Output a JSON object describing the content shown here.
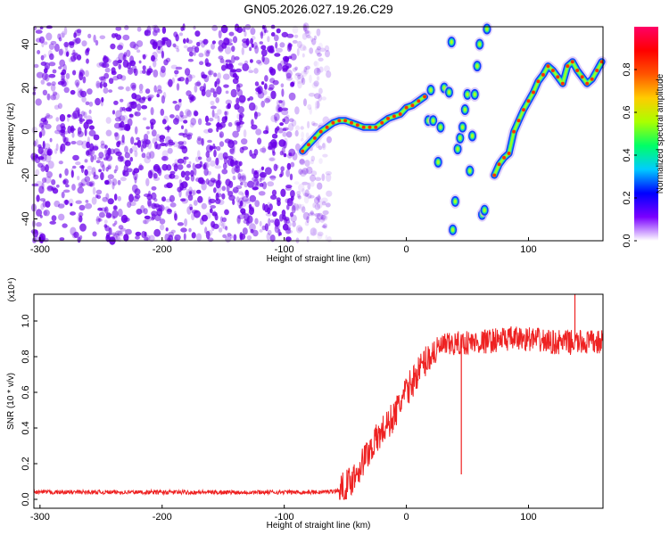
{
  "title": "GN05.2026.027.19.26.C29",
  "chart_data": [
    {
      "type": "heatmap",
      "xlabel": "Height of straight line (km)",
      "ylabel": "Frequency (Hz)",
      "xlim": [
        -305,
        161
      ],
      "ylim": [
        -50,
        48
      ],
      "xticks": [
        -300,
        -200,
        -100,
        0,
        100
      ],
      "yticks": [
        -40,
        -20,
        0,
        20,
        40
      ],
      "colorbar": {
        "label": "Normalized spectral amplitude",
        "range": [
          0,
          1
        ],
        "ticks": [
          "0.0",
          "0.2",
          "0.4",
          "0.6",
          "0.8"
        ],
        "tick_values": [
          0,
          0.2,
          0.4,
          0.6,
          0.8
        ],
        "colors": [
          "#ffffff",
          "#7a00ff",
          "#0000ff",
          "#00ccff",
          "#00ff66",
          "#aaff00",
          "#ffcc00",
          "#ff5500",
          "#ff0000",
          "#ff0066"
        ]
      },
      "noise_region": {
        "x_from": -305,
        "x_to": -63,
        "color": "#6a00e8"
      },
      "ridge": {
        "x": [
          -85,
          -80,
          -75,
          -70,
          -65,
          -60,
          -55,
          -50,
          -45,
          -40,
          -35,
          -30,
          -25,
          -20,
          -15,
          -10,
          -5,
          0,
          5,
          10,
          15
        ],
        "y": [
          -9,
          -6,
          -3,
          0,
          2,
          4,
          5,
          5,
          4,
          3,
          2,
          2,
          2,
          4,
          6,
          7,
          8,
          11,
          12,
          14,
          16
        ]
      },
      "tracks": [
        {
          "x": [
            18,
            20,
            22
          ],
          "y": [
            5,
            19,
            5
          ]
        },
        {
          "x": [
            26,
            28,
            31
          ],
          "y": [
            -14,
            2,
            20
          ]
        },
        {
          "x": [
            35,
            37
          ],
          "y": [
            18,
            41
          ]
        },
        {
          "x": [
            38,
            40,
            42,
            44,
            46,
            48,
            50
          ],
          "y": [
            -45,
            -32,
            -8,
            -3,
            2,
            10,
            17
          ]
        },
        {
          "x": [
            52,
            54,
            56,
            58,
            60
          ],
          "y": [
            -18,
            -2,
            17,
            30,
            40
          ]
        },
        {
          "x": [
            62,
            64,
            66
          ],
          "y": [
            -38,
            -36,
            47
          ]
        }
      ],
      "right_ridge": {
        "x": [
          72,
          76,
          80,
          84,
          88,
          92,
          96,
          100,
          104,
          108,
          112,
          116,
          120,
          124,
          128,
          132,
          136,
          140,
          144,
          148,
          152,
          156,
          160
        ],
        "y": [
          -20,
          -15,
          -12,
          -10,
          0,
          5,
          10,
          14,
          18,
          23,
          26,
          30,
          28,
          25,
          22,
          30,
          32,
          28,
          25,
          22,
          24,
          28,
          32
        ]
      }
    },
    {
      "type": "line",
      "xlabel": "Height of straight line (km)",
      "ylabel": "SNR (10 * v/v)",
      "scale_label": "(x10⁴)",
      "xlim": [
        -305,
        161
      ],
      "ylim": [
        -0.05,
        1.15
      ],
      "xticks": [
        -300,
        -200,
        -100,
        0,
        100
      ],
      "yticks": [
        "0.0",
        "0.2",
        "0.4",
        "0.6",
        "0.8",
        "1.0"
      ],
      "ytick_values": [
        0,
        0.2,
        0.4,
        0.6,
        0.8,
        1.0
      ],
      "line_color": "#ee2222",
      "series": [
        {
          "x": [
            -305,
            -250,
            -200,
            -150,
            -100,
            -70,
            -55,
            -50,
            -45,
            -40,
            -35,
            -30,
            -25,
            -20,
            -15,
            -10,
            -5,
            0,
            5,
            10,
            15,
            20,
            25,
            30,
            40,
            50,
            60,
            70,
            80,
            90,
            100,
            110,
            120,
            130,
            140,
            150,
            161
          ],
          "values": [
            0.04,
            0.04,
            0.04,
            0.04,
            0.04,
            0.04,
            0.05,
            0.07,
            0.11,
            0.16,
            0.22,
            0.28,
            0.33,
            0.38,
            0.42,
            0.47,
            0.54,
            0.6,
            0.66,
            0.72,
            0.77,
            0.81,
            0.84,
            0.86,
            0.87,
            0.88,
            0.88,
            0.89,
            0.9,
            0.9,
            0.9,
            0.89,
            0.88,
            0.88,
            0.88,
            0.88,
            0.88
          ]
        }
      ],
      "spikes": [
        {
          "x": 45,
          "value": 0.14
        },
        {
          "x": 138,
          "value": 1.15
        }
      ]
    }
  ]
}
